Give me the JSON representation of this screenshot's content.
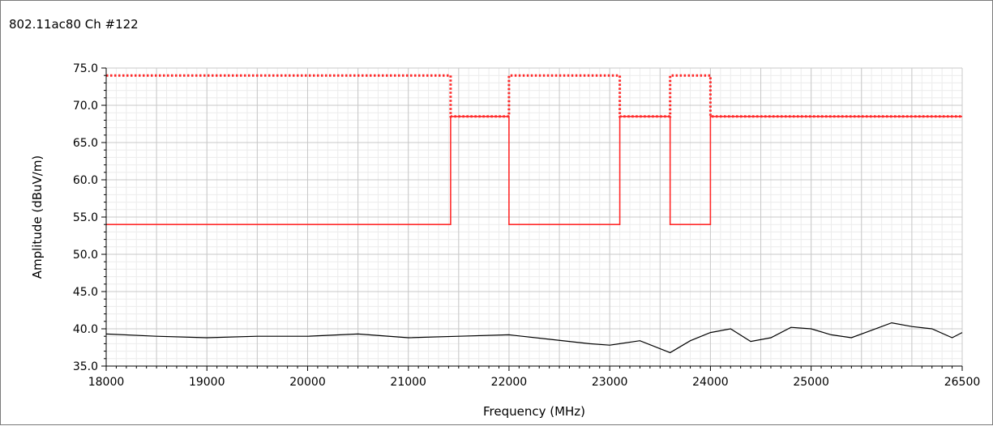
{
  "window": {
    "title": "802.11ac80 Ch #122"
  },
  "chart_data": {
    "type": "line",
    "title": "802.11ac80 Ch #122",
    "xlabel": "Frequency (MHz)",
    "ylabel": "Amplitude (dBuV/m)",
    "xlim": [
      18000,
      26500
    ],
    "ylim": [
      35,
      75
    ],
    "xticks": [
      18000,
      19000,
      20000,
      21000,
      22000,
      23000,
      24000,
      25000,
      26500
    ],
    "xtick_labels": [
      "18000",
      "19000",
      "20000",
      "21000",
      "22000",
      "23000",
      "24000",
      "25000",
      "26500"
    ],
    "yticks": [
      35,
      40,
      45,
      50,
      55,
      60,
      65,
      70,
      75
    ],
    "ytick_labels": [
      "35.0",
      "40.0",
      "45.0",
      "50.0",
      "55.0",
      "60.0",
      "65.0",
      "70.0",
      "75.0"
    ],
    "grid": true,
    "colors": {
      "limit": "#ff2a2a",
      "measurement": "#000000",
      "grid": "#c8c8c8",
      "minor_grid": "#ececec"
    },
    "series": [
      {
        "style": "dotted",
        "color": "#ff2a2a",
        "x": [
          18000,
          21420,
          21420,
          22000,
          22000,
          23100,
          23100,
          23600,
          23600,
          24000,
          24000,
          26500
        ],
        "y": [
          74.0,
          74.0,
          68.5,
          68.5,
          74.0,
          74.0,
          68.5,
          68.5,
          74.0,
          74.0,
          68.5,
          68.5
        ]
      },
      {
        "style": "solid",
        "color": "#ff2a2a",
        "x": [
          18000,
          21420,
          21420,
          22000,
          22000,
          23100,
          23100,
          23600,
          23600,
          24000,
          24000,
          26500
        ],
        "y": [
          54.0,
          54.0,
          68.5,
          68.5,
          54.0,
          54.0,
          68.5,
          68.5,
          54.0,
          54.0,
          68.5,
          68.5
        ]
      },
      {
        "style": "solid",
        "color": "#000000",
        "x": [
          18000,
          18500,
          19000,
          19500,
          20000,
          20500,
          21000,
          21500,
          22000,
          22400,
          22800,
          23000,
          23300,
          23600,
          23800,
          24000,
          24200,
          24400,
          24600,
          24800,
          25000,
          25200,
          25400,
          25600,
          25800,
          26000,
          26200,
          26400,
          26500
        ],
        "y": [
          39.3,
          39.0,
          38.8,
          39.0,
          39.0,
          39.3,
          38.8,
          39.0,
          39.2,
          38.6,
          38.0,
          37.8,
          38.4,
          36.8,
          38.4,
          39.5,
          40.0,
          38.3,
          38.8,
          40.2,
          40.0,
          39.2,
          38.8,
          39.8,
          40.8,
          40.3,
          40.0,
          38.8,
          39.5
        ]
      }
    ]
  }
}
